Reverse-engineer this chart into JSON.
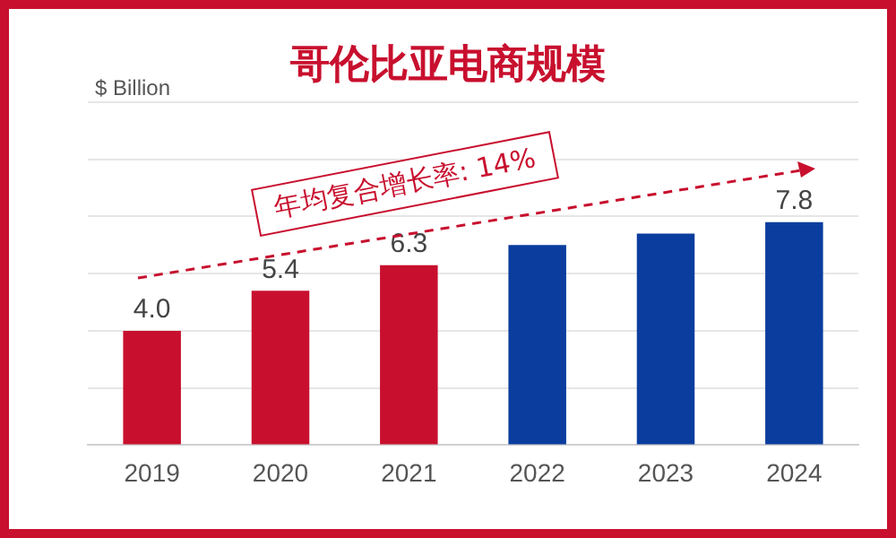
{
  "chart_data": {
    "type": "bar",
    "title": "哥伦比亚电商规模",
    "ylabel": "$ Billion",
    "annotations": [
      "年均复合增长率: 14%"
    ],
    "categories": [
      "2019",
      "2020",
      "2021",
      "2022",
      "2023",
      "2024"
    ],
    "values": [
      4.0,
      5.4,
      6.3,
      7.0,
      7.4,
      7.8
    ],
    "colors": [
      "#c8102e",
      "#c8102e",
      "#c8102e",
      "#0a3d9e",
      "#0a3d9e",
      "#0a3d9e"
    ],
    "value_labels": [
      "4.0",
      "5.4",
      "6.3",
      null,
      null,
      "7.8"
    ],
    "ylim": [
      0,
      12
    ],
    "yticks": [
      {
        "value": 0,
        "label": null
      },
      {
        "value": 2,
        "label": null
      },
      {
        "value": 4,
        "label": null
      },
      {
        "value": 6,
        "label": null
      },
      {
        "value": 8,
        "label": null
      },
      {
        "value": 10,
        "label": null
      },
      {
        "value": 12,
        "label": null
      }
    ],
    "grid": "y",
    "tick_labels": "x"
  }
}
